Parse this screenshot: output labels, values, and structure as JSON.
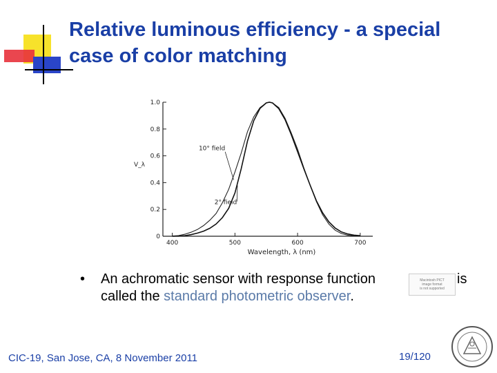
{
  "slide": {
    "title_line1": "Relative luminous efficiency - a special",
    "title_line2": "case of color matching",
    "bullet_symbol": "•",
    "bullet_text_part1": "An achromatic sensor with response function",
    "bullet_text_part1_tail": "is",
    "bullet_line2_prefix": "called the ",
    "bullet_highlight": "standard photometric observer",
    "bullet_line2_suffix": ".",
    "formula_placeholder_lines": [
      "Macintosh PICT",
      "image format",
      "is not supported"
    ],
    "footer": "CIC-19, San Jose, CA, 8 November 2011",
    "page_number": "19/120"
  },
  "colors": {
    "title": "#1a3fa6",
    "footer": "#1a3fa6",
    "highlight": "#5a7aa8",
    "deco_yellow": "#f7e22b",
    "deco_red": "#e8323c",
    "deco_blue": "#2a45c8"
  },
  "icons": {
    "seal": "university-seal-icon"
  },
  "chart_data": {
    "type": "line",
    "xlabel": "Wavelength, λ (nm)",
    "ylabel": "V_λ",
    "xlim": [
      385,
      720
    ],
    "ylim": [
      0,
      1.0
    ],
    "xticks": [
      400,
      500,
      600,
      700
    ],
    "yticks": [
      0,
      0.2,
      0.4,
      0.6,
      0.8,
      1.0
    ],
    "ytick_labels": [
      "0",
      "0.2",
      "0.4",
      "0.6",
      "0.8",
      "1.0"
    ],
    "annotations": [
      "10° field",
      "2° field"
    ],
    "series": [
      {
        "name": "10° field",
        "x": [
          400,
          410,
          420,
          430,
          440,
          450,
          460,
          470,
          480,
          490,
          500,
          510,
          520,
          530,
          540,
          550,
          555,
          560,
          570,
          580,
          590,
          600,
          610,
          620,
          630,
          640,
          650,
          660,
          670,
          680,
          690,
          700
        ],
        "y": [
          0.001,
          0.005,
          0.015,
          0.03,
          0.05,
          0.08,
          0.12,
          0.17,
          0.25,
          0.35,
          0.48,
          0.62,
          0.78,
          0.89,
          0.96,
          0.995,
          1.0,
          0.995,
          0.96,
          0.88,
          0.77,
          0.65,
          0.51,
          0.38,
          0.26,
          0.16,
          0.09,
          0.045,
          0.02,
          0.008,
          0.003,
          0.001
        ]
      },
      {
        "name": "2° field",
        "x": [
          400,
          410,
          420,
          430,
          440,
          450,
          460,
          470,
          480,
          490,
          500,
          510,
          520,
          530,
          540,
          550,
          555,
          560,
          570,
          580,
          590,
          600,
          610,
          620,
          630,
          640,
          650,
          660,
          670,
          680,
          690,
          700
        ],
        "y": [
          0.0004,
          0.0012,
          0.004,
          0.0116,
          0.023,
          0.038,
          0.06,
          0.091,
          0.139,
          0.208,
          0.323,
          0.503,
          0.71,
          0.862,
          0.954,
          0.995,
          1.0,
          0.995,
          0.952,
          0.87,
          0.757,
          0.631,
          0.503,
          0.381,
          0.265,
          0.175,
          0.107,
          0.061,
          0.032,
          0.017,
          0.008,
          0.004
        ]
      }
    ]
  }
}
